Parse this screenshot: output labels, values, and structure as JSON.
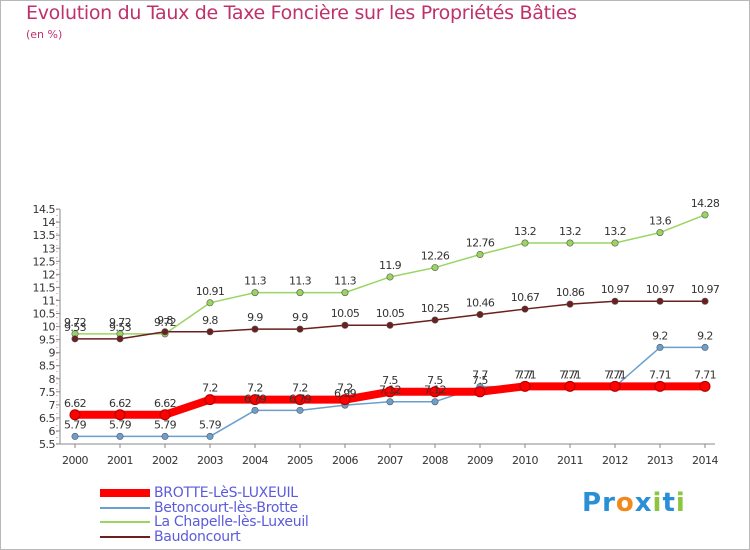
{
  "header": {
    "title": "Evolution du Taux de Taxe Foncière sur les Propriétés Bâties",
    "unit": "(en %)"
  },
  "chart_data": {
    "type": "line",
    "title": "Evolution du Taux de Taxe Foncière sur les Propriétés Bâties",
    "ylabel": "(en %)",
    "xlabel": "",
    "categories": [
      "2000",
      "2001",
      "2002",
      "2003",
      "2004",
      "2005",
      "2006",
      "2007",
      "2008",
      "2009",
      "2010",
      "2011",
      "2012",
      "2013",
      "2014"
    ],
    "ylim": [
      5.5,
      14.5
    ],
    "yticks": [
      "5.5",
      "6",
      "6.5",
      "7",
      "7.5",
      "8",
      "8.5",
      "9",
      "9.5",
      "10",
      "10.5",
      "11",
      "11.5",
      "12",
      "12.5",
      "13",
      "13.5",
      "14",
      "14.5"
    ],
    "grid": false,
    "legend_position": "bottom-left",
    "series": [
      {
        "name": "BROTTE-LèS-LUXEUIL",
        "color": "#ff0000",
        "values": [
          6.62,
          6.62,
          6.62,
          7.2,
          7.2,
          7.2,
          7.2,
          7.5,
          7.5,
          7.5,
          7.71,
          7.71,
          7.71,
          7.71,
          7.71
        ],
        "labels": [
          "6.62",
          "6.62",
          "6.62",
          "7.2",
          "7.2",
          "7.2",
          "7.2",
          "7.5",
          "7.5",
          "7.5",
          "7.71",
          "7.71",
          "7.71",
          "7.71",
          "7.71"
        ]
      },
      {
        "name": "Betoncourt-lès-Brotte",
        "color": "#6b9fce",
        "values": [
          5.79,
          5.79,
          5.79,
          5.79,
          6.79,
          6.79,
          6.99,
          7.12,
          7.12,
          7.7,
          7.7,
          7.7,
          7.7,
          9.2,
          9.2
        ],
        "labels": [
          "5.79",
          "5.79",
          "5.79",
          "5.79",
          "6.79",
          "6.79",
          "6.99",
          "7.12",
          "7.12",
          "7.7",
          "7.7",
          "7.7",
          "7.7",
          "9.2",
          "9.2"
        ]
      },
      {
        "name": "La Chapelle-lès-Luxeuil",
        "color": "#99d560",
        "values": [
          9.72,
          9.72,
          9.72,
          10.91,
          11.3,
          11.3,
          11.3,
          11.9,
          12.26,
          12.76,
          13.2,
          13.2,
          13.2,
          13.6,
          14.28
        ],
        "labels": [
          "9.72",
          "9.72",
          "9.72",
          "10.91",
          "11.3",
          "11.3",
          "11.3",
          "11.9",
          "12.26",
          "12.76",
          "13.2",
          "13.2",
          "13.2",
          "13.6",
          "14.28"
        ]
      },
      {
        "name": "Baudoncourt",
        "color": "#6b1f1f",
        "values": [
          9.53,
          9.53,
          9.8,
          9.8,
          9.9,
          9.9,
          10.05,
          10.05,
          10.25,
          10.46,
          10.67,
          10.86,
          10.97,
          10.97,
          10.97
        ],
        "labels": [
          "9.53",
          "9.53",
          "9.8",
          "9.8",
          "9.9",
          "9.9",
          "10.05",
          "10.05",
          "10.25",
          "10.46",
          "10.67",
          "10.86",
          "10.97",
          "10.97",
          "10.97"
        ]
      }
    ]
  },
  "legend": {
    "items": [
      {
        "label": "BROTTE-LèS-LUXEUIL",
        "color": "#ff0000"
      },
      {
        "label": "Betoncourt-lès-Brotte",
        "color": "#6b9fce"
      },
      {
        "label": "La Chapelle-lès-Luxeuil",
        "color": "#99d560"
      },
      {
        "label": "Baudoncourt",
        "color": "#6b1f1f"
      }
    ]
  },
  "logo": {
    "letters": [
      "P",
      "r",
      "o",
      "x",
      "i",
      "t",
      "i"
    ],
    "colors": [
      "#2a8fd6",
      "#2a8fd6",
      "#f08a1e",
      "#2a8fd6",
      "#8cc63f",
      "#2a8fd6",
      "#8cc63f"
    ]
  }
}
